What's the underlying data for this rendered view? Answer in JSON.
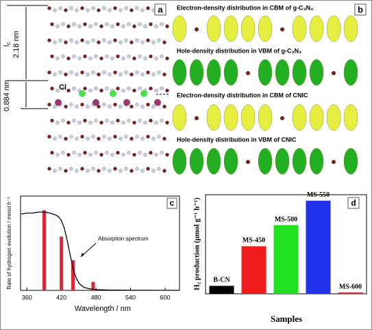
{
  "panels": {
    "a": {
      "label": "a",
      "lc": "l",
      "lc_sub": "c",
      "lc_value": "2.18 nm",
      "spacing": "0.884 nm",
      "atom": "Cl"
    },
    "b": {
      "label": "b",
      "captions": [
        "Electron-density distribution in CBM of g-C₃N₄",
        "Hole-density distribution in VBM of g-C₃N₄",
        "Electron-density distribution in CBM of CNIC",
        "Hole-density distribution in VBM of CNIC"
      ]
    }
  },
  "chart_data": [
    {
      "type": "bar",
      "panel": "c",
      "xlabel": "Wavelength / nm",
      "ylabel": "Rate of hydrogen evolution / mmol h⁻¹",
      "x": [
        390,
        420,
        440,
        475
      ],
      "values": [
        0.85,
        0.57,
        0.32,
        0.09
      ],
      "color": "#d62839",
      "line_x": [
        350,
        360,
        370,
        380,
        390,
        400,
        410,
        415,
        420,
        425,
        430,
        435,
        440,
        445,
        450,
        455,
        460,
        470,
        480,
        500,
        540,
        600,
        625
      ],
      "line_values": [
        0.81,
        0.82,
        0.82,
        0.83,
        0.83,
        0.82,
        0.8,
        0.78,
        0.74,
        0.66,
        0.53,
        0.38,
        0.24,
        0.14,
        0.08,
        0.05,
        0.03,
        0.015,
        0.008,
        0.004,
        0.002,
        0.001,
        0.001
      ],
      "line_color": "#000000",
      "annotation": "Absorption spectrum",
      "xlim": [
        349,
        625
      ],
      "xticks": [
        360,
        420,
        480,
        540,
        600
      ],
      "ylim": [
        0,
        1
      ]
    },
    {
      "type": "bar",
      "panel": "d",
      "xlabel": "Samples",
      "ylabel": "H₂ production (μmol g⁻¹ h⁻¹)",
      "categories": [
        "B-CN",
        "MS-450",
        "MS-500",
        "MS-550",
        "MS-600"
      ],
      "values": [
        12,
        72,
        104,
        141,
        2
      ],
      "colors": [
        "#000000",
        "#ee1c1c",
        "#22e022",
        "#2233ee",
        "#ee1c1c"
      ],
      "ylim": [
        0,
        150
      ]
    }
  ]
}
